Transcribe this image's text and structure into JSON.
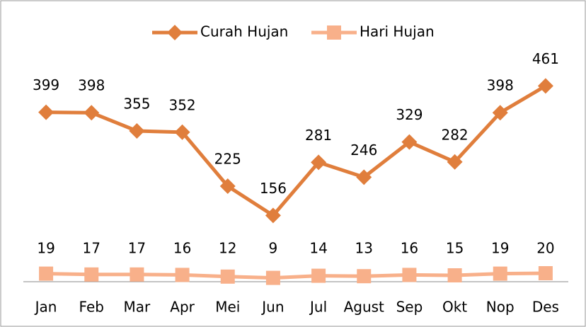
{
  "chart_data": {
    "type": "line",
    "categories": [
      "Jan",
      "Feb",
      "Mar",
      "Apr",
      "Mei",
      "Jun",
      "Jul",
      "Agust",
      "Sep",
      "Okt",
      "Nop",
      "Des"
    ],
    "series": [
      {
        "name": "Curah Hujan",
        "color": "#e07e3c",
        "marker": "diamond",
        "values": [
          399,
          398,
          355,
          352,
          225,
          156,
          281,
          246,
          329,
          282,
          398,
          461
        ]
      },
      {
        "name": "Hari Hujan",
        "color": "#f8b08a",
        "marker": "square",
        "values": [
          19,
          17,
          17,
          16,
          12,
          9,
          14,
          13,
          16,
          15,
          19,
          20
        ]
      }
    ],
    "ylim": [
      0,
      500
    ],
    "legend": "top"
  }
}
